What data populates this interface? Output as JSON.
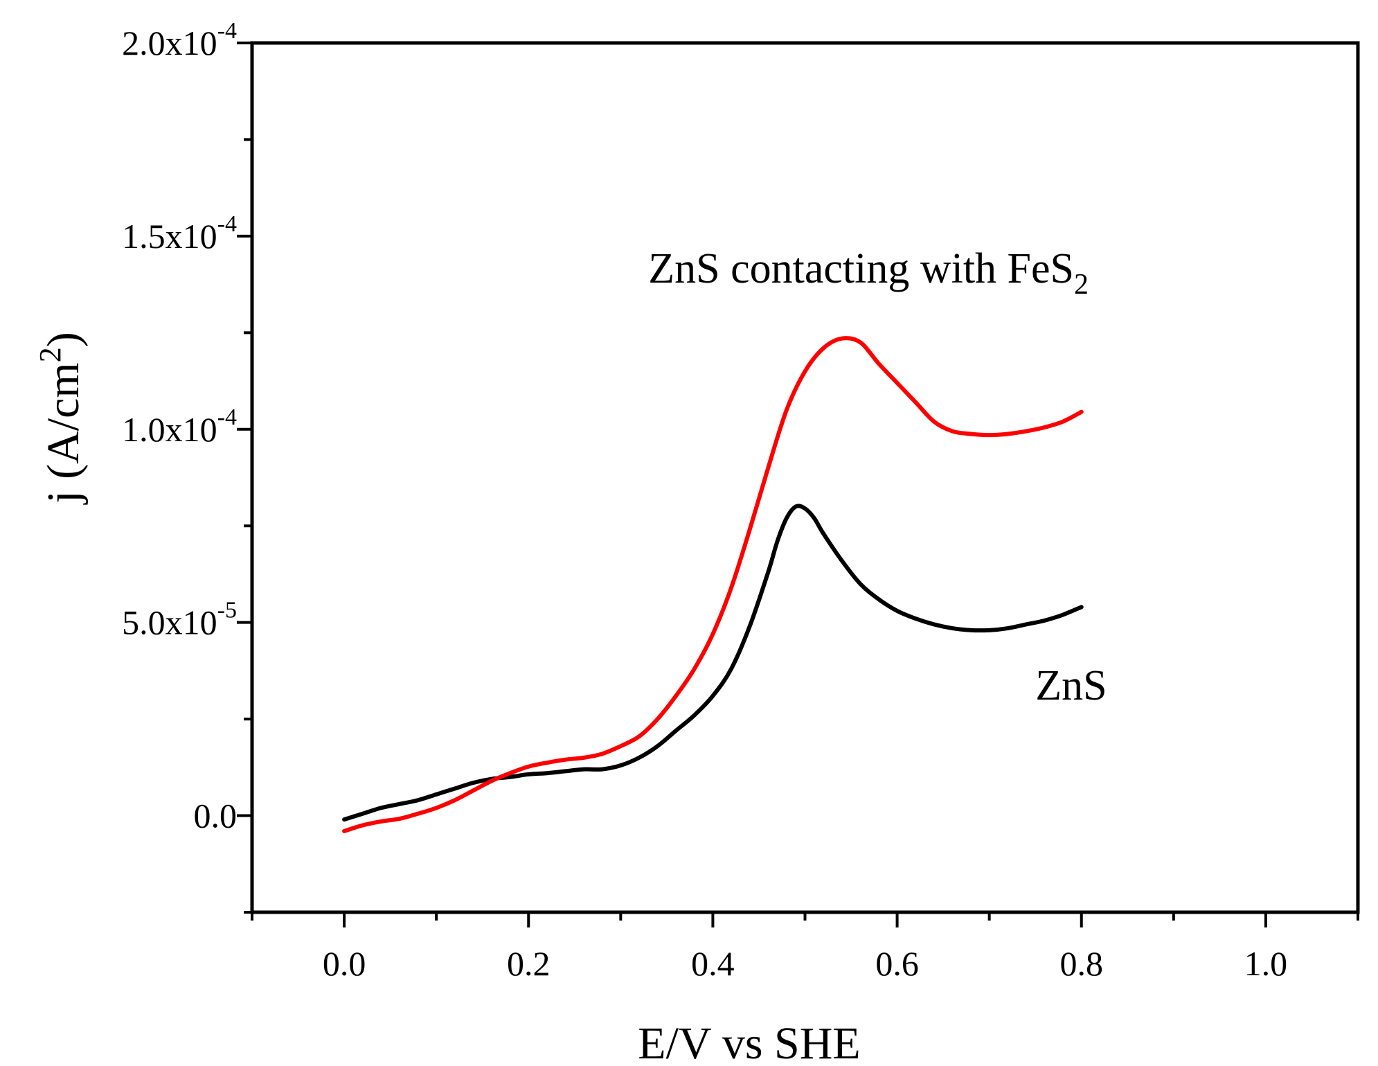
{
  "chart_data": {
    "type": "line",
    "title": "",
    "xlabel": "E/V vs SHE",
    "ylabel": {
      "main": "j (A/cm",
      "sup": "2",
      "tail": ")"
    },
    "xlim": [
      -0.1,
      1.1
    ],
    "ylim": [
      -2.5e-05,
      0.0002
    ],
    "x_ticks": [
      {
        "value": 0.0,
        "label": "0.0"
      },
      {
        "value": 0.2,
        "label": "0.2"
      },
      {
        "value": 0.4,
        "label": "0.4"
      },
      {
        "value": 0.6,
        "label": "0.6"
      },
      {
        "value": 0.8,
        "label": "0.8"
      },
      {
        "value": 1.0,
        "label": "1.0"
      }
    ],
    "x_minor_ticks": [
      -0.1,
      0.1,
      0.3,
      0.5,
      0.7,
      0.9,
      1.1
    ],
    "y_ticks": [
      {
        "value": 0.0,
        "mantissa": "0.0",
        "exponent": ""
      },
      {
        "value": 5e-05,
        "mantissa": "5.0x10",
        "exponent": "-5"
      },
      {
        "value": 0.0001,
        "mantissa": "1.0x10",
        "exponent": "-4"
      },
      {
        "value": 0.00015,
        "mantissa": "1.5x10",
        "exponent": "-4"
      },
      {
        "value": 0.0002,
        "mantissa": "2.0x10",
        "exponent": "-4"
      }
    ],
    "y_minor_ticks": [
      -2.5e-05,
      2.5e-05,
      7.5e-05,
      0.000125,
      0.000175
    ],
    "grid": false,
    "series": [
      {
        "name": "ZnS",
        "label": {
          "main": "ZnS",
          "sub": ""
        },
        "label_at": {
          "x": 0.75,
          "y": 3e-05
        },
        "color": "#000000",
        "x": [
          0.0,
          0.02,
          0.04,
          0.06,
          0.08,
          0.1,
          0.12,
          0.14,
          0.16,
          0.18,
          0.2,
          0.22,
          0.24,
          0.26,
          0.28,
          0.3,
          0.32,
          0.34,
          0.36,
          0.38,
          0.4,
          0.42,
          0.44,
          0.46,
          0.47,
          0.48,
          0.49,
          0.5,
          0.51,
          0.52,
          0.54,
          0.56,
          0.58,
          0.6,
          0.62,
          0.64,
          0.66,
          0.68,
          0.7,
          0.72,
          0.74,
          0.76,
          0.78,
          0.8
        ],
        "y": [
          -1e-06,
          5e-07,
          2e-06,
          3e-06,
          4e-06,
          5.5e-06,
          7e-06,
          8.5e-06,
          9.5e-06,
          1e-05,
          1.07e-05,
          1.1e-05,
          1.15e-05,
          1.2e-05,
          1.2e-05,
          1.3e-05,
          1.5e-05,
          1.8e-05,
          2.2e-05,
          2.6e-05,
          3.1e-05,
          3.8e-05,
          4.9e-05,
          6.3e-05,
          7.1e-05,
          7.7e-05,
          8e-05,
          7.95e-05,
          7.7e-05,
          7.3e-05,
          6.6e-05,
          6e-05,
          5.6e-05,
          5.3e-05,
          5.1e-05,
          4.95e-05,
          4.85e-05,
          4.8e-05,
          4.8e-05,
          4.85e-05,
          4.95e-05,
          5.05e-05,
          5.2e-05,
          5.4e-05
        ]
      },
      {
        "name": "ZnS contacting with FeS2",
        "label": {
          "main": "ZnS contacting with FeS",
          "sub": "2"
        },
        "label_at": {
          "x": 0.33,
          "y": 0.000138
        },
        "color": "#ff0000",
        "x": [
          0.0,
          0.02,
          0.04,
          0.06,
          0.08,
          0.1,
          0.12,
          0.14,
          0.16,
          0.18,
          0.2,
          0.22,
          0.24,
          0.26,
          0.28,
          0.3,
          0.32,
          0.34,
          0.36,
          0.38,
          0.4,
          0.42,
          0.44,
          0.46,
          0.48,
          0.5,
          0.52,
          0.54,
          0.56,
          0.58,
          0.6,
          0.62,
          0.64,
          0.66,
          0.68,
          0.7,
          0.72,
          0.74,
          0.76,
          0.78,
          0.8
        ],
        "y": [
          -4e-06,
          -2.5e-06,
          -1.5e-06,
          -8e-07,
          5e-07,
          2e-06,
          4e-06,
          6.5e-06,
          9e-06,
          1.1e-05,
          1.27e-05,
          1.37e-05,
          1.45e-05,
          1.5e-05,
          1.6e-05,
          1.8e-05,
          2.05e-05,
          2.5e-05,
          3.1e-05,
          3.8e-05,
          4.7e-05,
          5.9e-05,
          7.4e-05,
          9e-05,
          0.000105,
          0.000115,
          0.000121,
          0.0001235,
          0.0001225,
          0.000117,
          0.000112,
          0.000107,
          0.000102,
          9.95e-05,
          9.88e-05,
          9.85e-05,
          9.88e-05,
          9.95e-05,
          0.0001005,
          0.000102,
          0.0001045
        ]
      }
    ]
  }
}
